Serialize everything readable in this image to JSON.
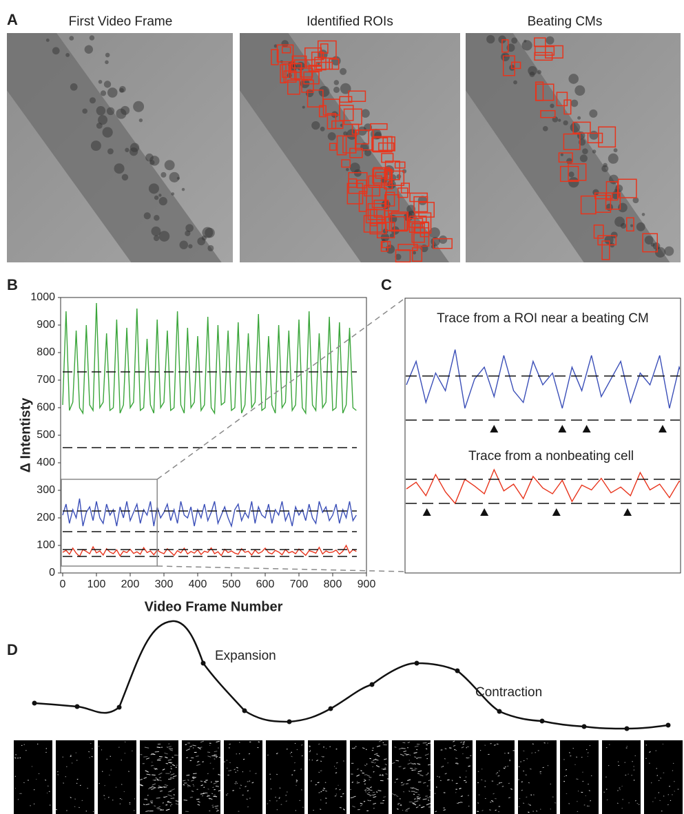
{
  "panel_a": {
    "label": "A",
    "titles": [
      "First Video Frame",
      "Identified ROIs",
      "Beating CMs"
    ]
  },
  "chart_data": {
    "type": "line",
    "label": "B",
    "xlabel": "Video Frame Number",
    "ylabel": "Δ Intentisty",
    "xlim": [
      0,
      900
    ],
    "ylim": [
      0,
      1000
    ],
    "xticks": [
      0,
      100,
      200,
      300,
      400,
      500,
      600,
      700,
      800,
      900
    ],
    "yticks": [
      0,
      100,
      200,
      300,
      400,
      500,
      600,
      700,
      800,
      900,
      1000
    ],
    "zoom_xlim": [
      0,
      280
    ],
    "zoom_ylim": [
      25,
      340
    ],
    "x": [
      0,
      10,
      20,
      30,
      40,
      50,
      60,
      70,
      80,
      90,
      100,
      110,
      120,
      130,
      140,
      150,
      160,
      170,
      180,
      190,
      200,
      210,
      220,
      230,
      240,
      250,
      260,
      270,
      280,
      290,
      300,
      310,
      320,
      330,
      340,
      350,
      360,
      370,
      380,
      390,
      400,
      410,
      420,
      430,
      440,
      450,
      460,
      470,
      480,
      490,
      500,
      510,
      520,
      530,
      540,
      550,
      560,
      570,
      580,
      590,
      600,
      610,
      620,
      630,
      640,
      650,
      660,
      670,
      680,
      690,
      700,
      710,
      720,
      730,
      740,
      750,
      760,
      770,
      780,
      790,
      800,
      810,
      820,
      830,
      840,
      850,
      860,
      870
    ],
    "series": [
      {
        "color": "#3aa53a",
        "thresholds": [
          730,
          455
        ],
        "values": [
          610,
          950,
          590,
          620,
          880,
          600,
          580,
          900,
          610,
          590,
          980,
          600,
          620,
          870,
          590,
          600,
          920,
          580,
          610,
          890,
          600,
          620,
          960,
          590,
          600,
          850,
          610,
          580,
          920,
          600,
          620,
          880,
          590,
          600,
          950,
          610,
          580,
          890,
          600,
          620,
          860,
          590,
          610,
          930,
          600,
          580,
          900,
          610,
          620,
          880,
          590,
          600,
          910,
          580,
          610,
          870,
          600,
          620,
          940,
          590,
          600,
          860,
          610,
          580,
          900,
          600,
          620,
          880,
          590,
          610,
          920,
          600,
          580,
          950,
          610,
          590,
          870,
          600,
          620,
          930,
          590,
          600,
          910,
          580,
          610,
          890,
          600,
          590
        ]
      },
      {
        "color": "#3b4fb8",
        "thresholds": [
          225,
          150
        ],
        "values": [
          210,
          250,
          180,
          230,
          200,
          270,
          170,
          220,
          240,
          190,
          260,
          200,
          180,
          250,
          210,
          230,
          170,
          240,
          200,
          260,
          190,
          220,
          250,
          180,
          230,
          210,
          260,
          170,
          240,
          200,
          220,
          250,
          190,
          230,
          180,
          260,
          210,
          200,
          240,
          170,
          230,
          200,
          250,
          190,
          220,
          260,
          180,
          210,
          240,
          200,
          170,
          230,
          250,
          190,
          220,
          200,
          260,
          180,
          240,
          210,
          200,
          250,
          180,
          230,
          210,
          260,
          190,
          220,
          170,
          240,
          210,
          230,
          190,
          250,
          200,
          180,
          260,
          220,
          240,
          190,
          210,
          250,
          180,
          230,
          200,
          260,
          190,
          210
        ]
      },
      {
        "color": "#e8341c",
        "thresholds": [
          85,
          60
        ],
        "values": [
          75,
          82,
          68,
          90,
          72,
          60,
          85,
          78,
          70,
          95,
          73,
          80,
          65,
          88,
          76,
          70,
          84,
          62,
          79,
          74,
          86,
          71,
          77,
          68,
          92,
          74,
          80,
          66,
          83,
          75,
          70,
          88,
          76,
          64,
          81,
          73,
          90,
          69,
          78,
          72,
          84,
          67,
          79,
          75,
          91,
          70,
          77,
          63,
          86,
          74,
          80,
          72,
          68,
          88,
          75,
          79,
          65,
          83,
          71,
          77,
          90,
          74,
          69,
          82,
          76,
          66,
          85,
          73,
          78,
          70,
          87,
          75,
          64,
          81,
          77,
          72,
          93,
          69,
          80,
          74,
          76,
          83,
          68,
          79,
          100,
          72,
          85,
          78
        ]
      }
    ]
  },
  "inset": {
    "label": "C",
    "traces": [
      {
        "title": "Trace from a ROI near a beating CM",
        "markers_x": [
          90,
          160,
          185,
          263
        ]
      },
      {
        "title": "Trace from a nonbeating cell",
        "markers_x": [
          21,
          80,
          154,
          227
        ]
      }
    ]
  },
  "panel_d": {
    "label": "D",
    "annotations": [
      "Expansion",
      "Contraction"
    ]
  }
}
